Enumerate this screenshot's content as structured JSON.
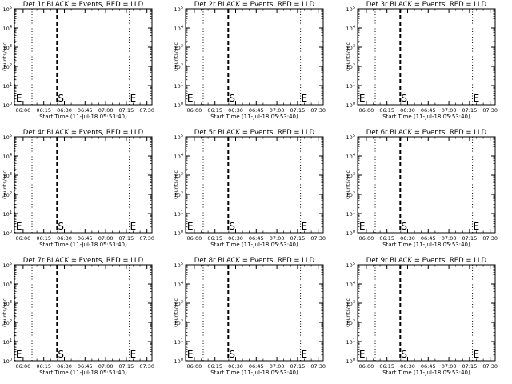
{
  "chart_data": [
    {
      "type": "line",
      "title": "Det 1r BLACK = Events, RED = LLD",
      "ylabel": "Counts/sec",
      "xlabel": "Start Time (11-Jul-18 05:53:40)"
    },
    {
      "type": "line",
      "title": "Det 2r BLACK = Events, RED = LLD",
      "ylabel": "Counts/sec",
      "xlabel": "Start Time (11-Jul-18 05:53:40)"
    },
    {
      "type": "line",
      "title": "Det 3r BLACK = Events, RED = LLD",
      "ylabel": "Counts/sec",
      "xlabel": "Start Time (11-Jul-18 05:53:40)"
    },
    {
      "type": "line",
      "title": "Det 4r BLACK = Events, RED = LLD",
      "ylabel": "Counts/sec",
      "xlabel": "Start Time (11-Jul-18 05:53:40)"
    },
    {
      "type": "line",
      "title": "Det 5r BLACK = Events, RED = LLD",
      "ylabel": "Counts/sec",
      "xlabel": "Start Time (11-Jul-18 05:53:40)"
    },
    {
      "type": "line",
      "title": "Det 6r BLACK = Events, RED = LLD",
      "ylabel": "Counts/sec",
      "xlabel": "Start Time (11-Jul-18 05:53:40)"
    },
    {
      "type": "line",
      "title": "Det 7r BLACK = Events, RED = LLD",
      "ylabel": "Counts/sec",
      "xlabel": "Start Time (11-Jul-18 05:53:40)"
    },
    {
      "type": "line",
      "title": "Det 8r BLACK = Events, RED = LLD",
      "ylabel": "Counts/sec",
      "xlabel": "Start Time (11-Jul-18 05:53:40)"
    },
    {
      "type": "line",
      "title": "Det 9r BLACK = Events, RED = LLD",
      "ylabel": "Counts/sec",
      "xlabel": "Start Time (11-Jul-18 05:53:40)"
    }
  ],
  "shared_axes": {
    "x_ticks": [
      "06:00",
      "06:15",
      "06:30",
      "06:45",
      "07:00",
      "07:15",
      "07:30"
    ],
    "x_tick_minutes_since_0553_40": [
      6.33,
      21.33,
      36.33,
      51.33,
      66.33,
      81.33,
      96.33
    ],
    "x_range_minutes": [
      0,
      100
    ],
    "y_scale": "log",
    "y_range": [
      1,
      100000
    ],
    "y_ticks": [
      {
        "base": "10",
        "exp": "0"
      },
      {
        "base": "10",
        "exp": "1"
      },
      {
        "base": "10",
        "exp": "2"
      },
      {
        "base": "10",
        "exp": "3"
      },
      {
        "base": "10",
        "exp": "4"
      },
      {
        "base": "10",
        "exp": "5"
      }
    ]
  },
  "markers": [
    {
      "label": "E",
      "x": 0.5,
      "style": "dotted"
    },
    {
      "label": "",
      "x": 12.8,
      "style": "dotted"
    },
    {
      "label": "S",
      "x": 31.0,
      "style": "dashed"
    },
    {
      "label": "E",
      "x": 83.5,
      "style": "dotted"
    }
  ],
  "colors": {
    "events": "#000000",
    "lld": "#ff0000"
  }
}
